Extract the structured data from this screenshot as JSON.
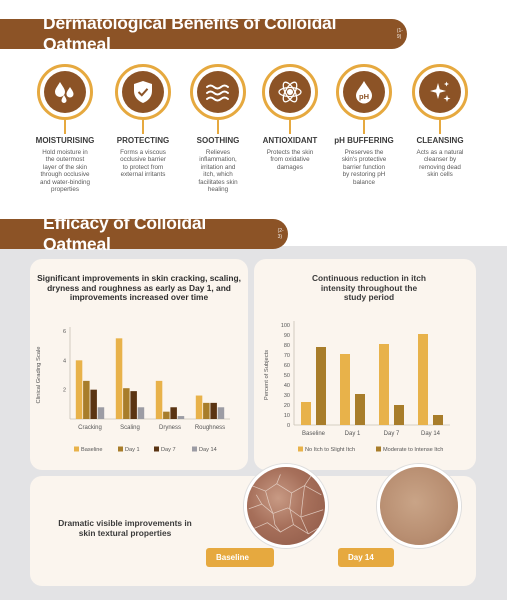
{
  "section1": {
    "title": "Dermatological Benefits of Colloidal Oatmeal",
    "ref": "(1-9)"
  },
  "benefits": [
    {
      "icon": "water-drops-icon",
      "title": "MOISTURISING",
      "desc": [
        "Hold moisture in",
        "the outermost",
        "layer of the skin",
        "through occlusive",
        "and water-binding",
        "properties"
      ]
    },
    {
      "icon": "shield-check-icon",
      "title": "PROTECTING",
      "desc": [
        "Forms a viscous",
        "occlusive barrier",
        "to protect from",
        "external irritants"
      ]
    },
    {
      "icon": "waves-icon",
      "title": "SOOTHING",
      "desc": [
        "Relieves",
        "inflammation,",
        "irritation and",
        "itch, which",
        "facilitates skin",
        "healing"
      ]
    },
    {
      "icon": "atom-icon",
      "title": "ANTIOXIDANT",
      "desc": [
        "Protects the skin",
        "from oxidative",
        "damages"
      ]
    },
    {
      "icon": "ph-drop-icon",
      "title": "pH BUFFERING",
      "desc": [
        "Preserves the",
        "skin's protective",
        "barrier function",
        "by restoring pH",
        "balance"
      ]
    },
    {
      "icon": "sparkles-icon",
      "title": "CLEANSING",
      "desc": [
        "Acts as a natural",
        "cleanser by",
        "removing dead",
        "skin cells"
      ]
    }
  ],
  "section2": {
    "title": "Efficacy of Colloidal Oatmeal",
    "ref": "(2-3)"
  },
  "chart_data": [
    {
      "type": "bar",
      "title": "Significant improvements in skin cracking, scaling, dryness and roughness as early as Day 1, and improvements increased over time",
      "ylabel": "Clinical Grading Scale",
      "xlabel": "",
      "ylim": [
        0,
        6
      ],
      "yticks": [
        2,
        4,
        6
      ],
      "categories": [
        "Cracking",
        "Scaling",
        "Dryness",
        "Roughness"
      ],
      "series": [
        {
          "name": "Baseline",
          "color": "#e8b24a",
          "values": [
            4.0,
            5.5,
            2.6,
            1.6
          ]
        },
        {
          "name": "Day 1",
          "color": "#a87d2a",
          "values": [
            2.6,
            2.1,
            0.5,
            1.1
          ]
        },
        {
          "name": "Day 7",
          "color": "#5a3413",
          "values": [
            2.0,
            1.9,
            0.8,
            1.1
          ]
        },
        {
          "name": "Day 14",
          "color": "#9c9ca4",
          "values": [
            0.8,
            0.8,
            0.2,
            0.8
          ]
        }
      ],
      "legend": "bottom"
    },
    {
      "type": "bar",
      "title": "Continuous reduction in itch intensity throughout the study period",
      "ylabel": "Percent of Subjects",
      "xlabel": "",
      "ylim": [
        0,
        100
      ],
      "yticks": [
        0,
        10,
        20,
        30,
        40,
        50,
        60,
        70,
        80,
        90,
        100
      ],
      "categories": [
        "Baseline",
        "Day 1",
        "Day 7",
        "Day 14"
      ],
      "series": [
        {
          "name": "No Itch to Slight Itch",
          "color": "#e8b24a",
          "values": [
            23,
            71,
            81,
            91
          ]
        },
        {
          "name": "Moderate to Intense Itch",
          "color": "#a87d2a",
          "values": [
            78,
            31,
            20,
            10
          ]
        }
      ],
      "legend": "bottom"
    }
  ],
  "bottom": {
    "title": "Dramatic visible improvements in skin textural properties",
    "labels": [
      "Baseline",
      "Day 14"
    ]
  }
}
